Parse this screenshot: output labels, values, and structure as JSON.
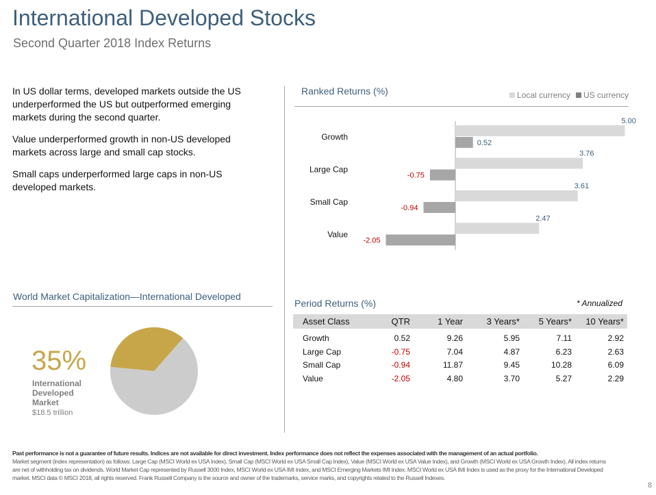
{
  "header": {
    "title": "International Developed Stocks",
    "subtitle": "Second Quarter 2018 Index Returns"
  },
  "bullets": [
    "In US dollar terms, developed markets outside the US underperformed the US but outperformed emerging markets during the second quarter.",
    "Value underperformed growth in non-US developed markets across large and small cap stocks.",
    "Small caps underperformed large caps in non-US developed markets."
  ],
  "ranked": {
    "heading": "Ranked Returns (%)",
    "legend": [
      "Local currency",
      "US currency"
    ]
  },
  "chart_data": [
    {
      "type": "bar",
      "orientation": "horizontal",
      "title": "Ranked Returns (%)",
      "categories": [
        "Growth",
        "Large Cap",
        "Small Cap",
        "Value"
      ],
      "series": [
        {
          "name": "Local currency",
          "values": [
            5.0,
            3.76,
            3.61,
            2.47
          ],
          "color": "#d9d9d9"
        },
        {
          "name": "US currency",
          "values": [
            0.52,
            -0.75,
            -0.94,
            -2.05
          ],
          "color": "#a6a6a6"
        }
      ],
      "value_labels": {
        "Local currency": [
          "5.00",
          "3.76",
          "3.61",
          "2.47"
        ],
        "US currency": [
          "0.52",
          "-0.75",
          "-0.94",
          "-2.05"
        ]
      },
      "legend_position": "top-right",
      "xlim": [
        -2.05,
        5.0
      ]
    },
    {
      "type": "pie",
      "title": "World Market Capitalization—International  Developed",
      "slices": [
        {
          "label": "International Developed Market",
          "value": 35,
          "color": "#c7a64a"
        },
        {
          "label": "",
          "value": 65,
          "color": "#cccccc"
        }
      ]
    }
  ],
  "period": {
    "heading": "Period Returns (%)",
    "annotation": "* Annualized",
    "columns": [
      "Asset Class",
      "QTR",
      "1 Year",
      "3 Years*",
      "5 Years*",
      "10 Years*"
    ],
    "rows": [
      {
        "cells": [
          "Growth",
          "0.52",
          "9.26",
          "5.95",
          "7.11",
          "2.92"
        ]
      },
      {
        "cells": [
          "Large Cap",
          "-0.75",
          "7.04",
          "4.87",
          "6.23",
          "2.63"
        ]
      },
      {
        "cells": [
          "Small Cap",
          "-0.94",
          "11.87",
          "9.45",
          "10.28",
          "6.09"
        ]
      },
      {
        "cells": [
          "Value",
          "-2.05",
          "4.80",
          "3.70",
          "5.27",
          "2.29"
        ]
      }
    ]
  },
  "market_cap": {
    "heading": "World Market Capitalization—International  Developed",
    "percent": "35%",
    "label_lines": [
      "International",
      "Developed",
      "Market"
    ],
    "value": "$18.5 trillion"
  },
  "footer": {
    "bold": "Past performance is not a guarantee of future results. Indices are not available for direct investment. Index performance does not reflect the expenses associated with the management of an actual portfolio.",
    "text": "Market segment (index representation) as follows: Large Cap (MSCI World ex USA Index), Small Cap (MSCI World ex USA Small Cap Index), Value (MSCI World ex USA Value Index), and Growth (MSCI World ex USA Growth Index). All index returns are net of withholding tax on dividends. World Market Cap represented by Russell 3000 Index, MSCI World ex USA IMI Index, and MSCI Emerging Markets IMI Index. MSCI World ex USA IMI Index is used as the proxy for the International Developed market. MSCI data © MSCI 2018, all rights reserved. Frank Russell Company is the source and owner of the trademarks, service marks, and copyrights related to the Russell Indexes.",
    "page": "8"
  },
  "colors": {
    "title": "#3d5f7c",
    "local": "#d9d9d9",
    "us": "#a6a6a6",
    "negative": "#c00000",
    "positive_label": "#3d5f7c",
    "gold": "#c7a64a"
  }
}
